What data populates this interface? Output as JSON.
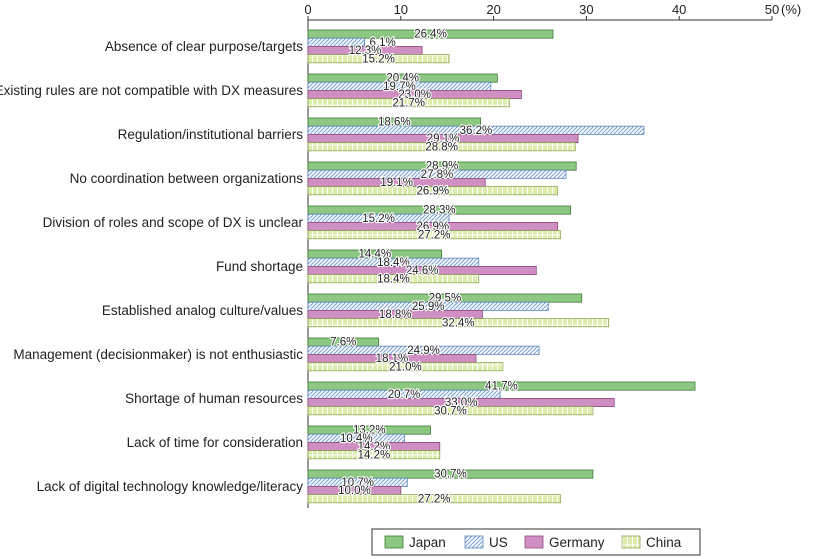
{
  "chart_data": {
    "type": "bar",
    "orientation": "horizontal",
    "title": "",
    "xlabel": "",
    "ylabel": "",
    "unit_label": "(%)",
    "xlim": [
      0,
      50
    ],
    "xticks": [
      0,
      10,
      20,
      30,
      40,
      50
    ],
    "grid": false,
    "legend_position": "bottom-right",
    "categories": [
      "Absence of clear purpose/targets",
      "Existing rules are not compatible with DX measures",
      "Regulation/institutional barriers",
      "No coordination between organizations",
      "Division of roles and scope of DX is unclear",
      "Fund shortage",
      "Established analog culture/values",
      "Management (decisionmaker) is not enthusiastic",
      "Shortage of human resources",
      "Lack of time for consideration",
      "Lack of digital technology knowledge/literacy"
    ],
    "series": [
      {
        "name": "Japan",
        "color": "#8cc882",
        "pattern": "solid",
        "values": [
          26.4,
          20.4,
          18.6,
          28.9,
          28.3,
          14.4,
          29.5,
          7.6,
          41.7,
          13.2,
          30.7
        ],
        "labels": [
          "26.4%",
          "20.4%",
          "18.6%",
          "28.9%",
          "28.3%",
          "14.4%",
          "29.5%",
          "7.6%",
          "41.7%",
          "13.2%",
          "30.7%"
        ]
      },
      {
        "name": "US",
        "color": "#a9c8ea",
        "pattern": "diagonal-hatch",
        "values": [
          6.1,
          19.7,
          36.2,
          27.8,
          15.2,
          18.4,
          25.9,
          24.9,
          20.7,
          10.4,
          10.7
        ],
        "labels": [
          "6.1%",
          "19.7%",
          "36.2%",
          "27.8%",
          "15.2%",
          "18.4%",
          "25.9%",
          "24.9%",
          "20.7%",
          "10.4%",
          "10.7%"
        ]
      },
      {
        "name": "Germany",
        "color": "#cf8fc3",
        "pattern": "solid",
        "values": [
          12.3,
          23.0,
          29.1,
          19.1,
          26.9,
          24.6,
          18.8,
          18.1,
          33.0,
          14.2,
          10.0
        ],
        "labels": [
          "12.3%",
          "23.0%",
          "29.1%",
          "19.1%",
          "26.9%",
          "24.6%",
          "18.8%",
          "18.1%",
          "33.0%",
          "14.2%",
          "10.0%"
        ]
      },
      {
        "name": "China",
        "color": "#d2e6a0",
        "pattern": "grid-stripe",
        "values": [
          15.2,
          21.7,
          28.8,
          26.9,
          27.2,
          18.4,
          32.4,
          21.0,
          30.7,
          14.2,
          27.2
        ],
        "labels": [
          "15.2%",
          "21.7%",
          "28.8%",
          "26.9%",
          "27.2%",
          "18.4%",
          "32.4%",
          "21.0%",
          "30.7%",
          "14.2%",
          "27.2%"
        ]
      }
    ]
  }
}
